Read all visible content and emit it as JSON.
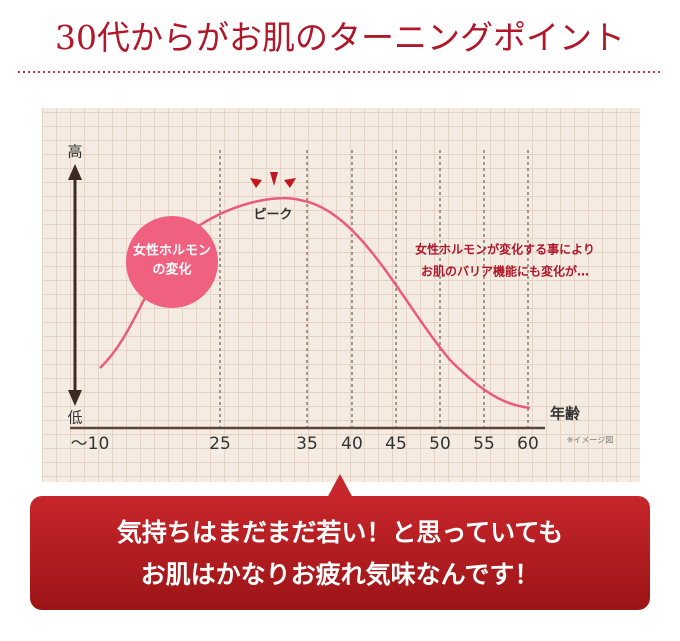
{
  "title": "30代からがお肌のターニングポイント",
  "chart": {
    "y_axis_top": "高",
    "y_axis_bottom": "低",
    "x_axis_label": "年齢",
    "x_ticks": [
      "〜10",
      "25",
      "35",
      "40",
      "45",
      "50",
      "55",
      "60"
    ],
    "peak_label": "ピーク",
    "bubble_label": [
      "女性ホルモン",
      "の変化"
    ],
    "annotation": [
      "女性ホルモンが変化する事により",
      "お肌のバリア機能にも変化が…"
    ],
    "note": "※イメージ図"
  },
  "callout": [
    "気持ちはまだまだ若い！と思っていても",
    "お肌はかなりお疲れ気味なんです！"
  ]
}
